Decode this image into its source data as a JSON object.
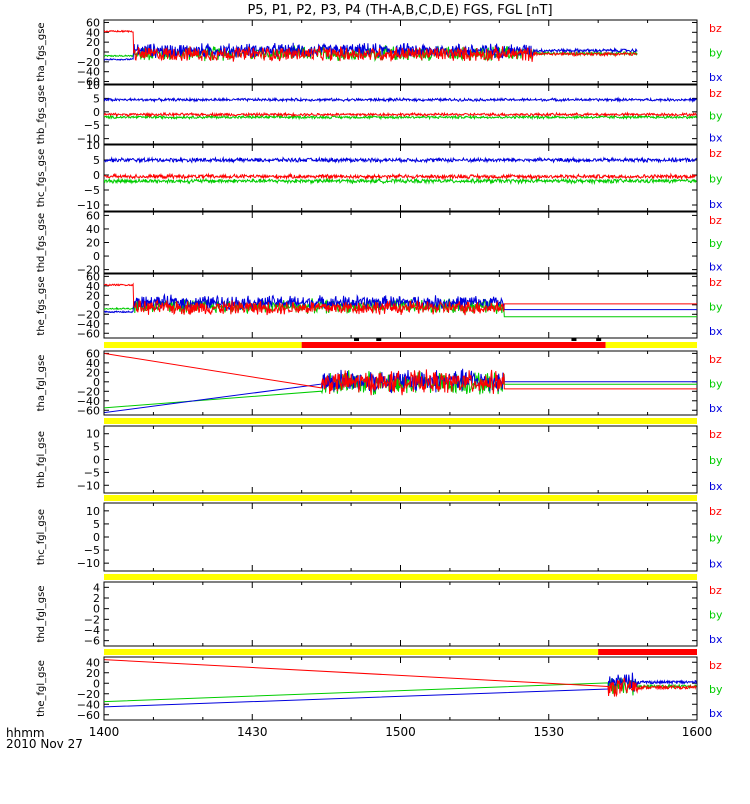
{
  "chart_data": {
    "type": "line",
    "title": "P5, P1, P2, P3, P4 (TH-A,B,C,D,E) FGS, FGL [nT]",
    "xlabel_line1": "hhmm",
    "xlabel_line2": "2010 Nov 27",
    "x_range": [
      "14:00",
      "16:00"
    ],
    "x_ticks": [
      "1400",
      "1430",
      "1500",
      "1530",
      "1600"
    ],
    "series_colors": {
      "bx": "#0000dd",
      "by": "#00cc00",
      "bz": "#ff0000",
      "flag_yellow": "#ffff00",
      "flag_red": "#ff0000"
    },
    "panels": [
      {
        "ylabel": "tha_fgs_gse",
        "ylim": [
          -65,
          65
        ],
        "yticks": [
          "60",
          "40",
          "20",
          "0",
          "−20",
          "−40",
          "−60"
        ],
        "legend": [
          "bz",
          "by",
          "bx"
        ],
        "data": {
          "start": 0,
          "end": 108,
          "pre_end": 6,
          "bz_pre": 42,
          "by_pre": -8,
          "bx_pre": -15,
          "bx": 3,
          "by": -3,
          "bz": -4,
          "amp": 17,
          "tail_start": 87,
          "tail_amp": 4
        }
      },
      {
        "ylabel": "thb_fgs_gse",
        "ylim": [
          -12,
          10
        ],
        "yticks": [
          "10",
          "5",
          "0",
          "−5",
          "−10"
        ],
        "legend": [
          "bz",
          "by",
          "bx"
        ],
        "data": {
          "start": 0,
          "end": 120,
          "bx": 4.5,
          "by": -2,
          "bz": -1,
          "amp": 0.6
        }
      },
      {
        "ylabel": "thc_fgs_gse",
        "ylim": [
          -12,
          10
        ],
        "yticks": [
          "10",
          "5",
          "0",
          "−5",
          "−10"
        ],
        "legend": [
          "bz",
          "by",
          "bx"
        ],
        "data": {
          "start": 0,
          "end": 120,
          "bx": 5,
          "by": -2,
          "bz": -0.5,
          "amp": 0.8
        }
      },
      {
        "ylabel": "thd_fgs_gse",
        "ylim": [
          -25,
          65
        ],
        "yticks": [
          "60",
          "40",
          "20",
          "0",
          "−20"
        ],
        "legend": [
          "bz",
          "by",
          "bx"
        ],
        "data": null
      },
      {
        "ylabel": "the_fgs_gse",
        "ylim": [
          -70,
          65
        ],
        "yticks": [
          "60",
          "40",
          "20",
          "0",
          "−20",
          "−40",
          "−60"
        ],
        "legend": [
          "bz",
          "by",
          "bx"
        ],
        "data": {
          "start": 0,
          "end": 81,
          "pre_end": 6,
          "bz_pre": 42,
          "by_pre": -8,
          "bx_pre": -15,
          "bx": 5,
          "by": -3,
          "bz": -6,
          "amp": 17,
          "hold_end": 120,
          "bx_hold": -10,
          "by_hold": -25,
          "bz_hold": 2
        }
      },
      {
        "ylabel": "tha_fgl_gse",
        "ylim": [
          -70,
          65
        ],
        "yticks": [
          "60",
          "40",
          "20",
          "0",
          "−20",
          "−40",
          "−60"
        ],
        "legend": [
          "bz",
          "by",
          "bx"
        ],
        "data": {
          "start": 44,
          "end": 81,
          "bx": 2,
          "by": -3,
          "bz": -1,
          "amp": 28,
          "gap_start_bz": 60,
          "gap_start_by": -55,
          "gap_start_bx": -65,
          "hold_end": 120,
          "bx_hold": 0,
          "by_hold": -5,
          "bz_hold": -15
        }
      },
      {
        "ylabel": "thb_fgl_gse",
        "ylim": [
          -13,
          13
        ],
        "yticks": [
          "10",
          "5",
          "0",
          "−5",
          "−10"
        ],
        "legend": [
          "bz",
          "by",
          "bx"
        ],
        "data": null
      },
      {
        "ylabel": "thc_fgl_gse",
        "ylim": [
          -13,
          13
        ],
        "yticks": [
          "10",
          "5",
          "0",
          "−5",
          "−10"
        ],
        "legend": [
          "bz",
          "by",
          "bx"
        ],
        "data": null
      },
      {
        "ylabel": "thd_fgl_gse",
        "ylim": [
          -7,
          5
        ],
        "yticks": [
          "4",
          "2",
          "0",
          "−2",
          "−4",
          "−6"
        ],
        "legend": [
          "bz",
          "by",
          "bx"
        ],
        "data": null
      },
      {
        "ylabel": "the_fgl_gse",
        "ylim": [
          -70,
          50
        ],
        "yticks": [
          "40",
          "20",
          "0",
          "−20",
          "−40",
          "−60"
        ],
        "legend": [
          "bz",
          "by",
          "bx"
        ],
        "data": {
          "start": 102,
          "end": 108,
          "bx": 2,
          "by": -6,
          "bz": -8,
          "amp": 20,
          "gap_start_bz": 45,
          "gap_start_by": -35,
          "gap_start_bx": -45,
          "tail_start": 108,
          "tail_end": 120,
          "tail_amp": 3
        }
      }
    ],
    "flag_bars": [
      {
        "segments": [
          {
            "color": "yellow",
            "from": 0,
            "to": 40
          },
          {
            "color": "red",
            "from": 40,
            "to": 101.5
          },
          {
            "color": "yellow",
            "from": 101.5,
            "to": 120
          }
        ],
        "ticks": [
          51,
          55.5,
          95,
          100
        ]
      },
      {
        "segments": [
          {
            "color": "yellow",
            "from": 0,
            "to": 120
          }
        ],
        "ticks": []
      },
      {
        "segments": [
          {
            "color": "yellow",
            "from": 0,
            "to": 120
          }
        ],
        "ticks": []
      },
      {
        "segments": [
          {
            "color": "yellow",
            "from": 0,
            "to": 120
          }
        ],
        "ticks": []
      },
      {
        "segments": [
          {
            "color": "yellow",
            "from": 0,
            "to": 100
          },
          {
            "color": "red",
            "from": 100,
            "to": 120
          }
        ],
        "ticks": []
      }
    ]
  }
}
